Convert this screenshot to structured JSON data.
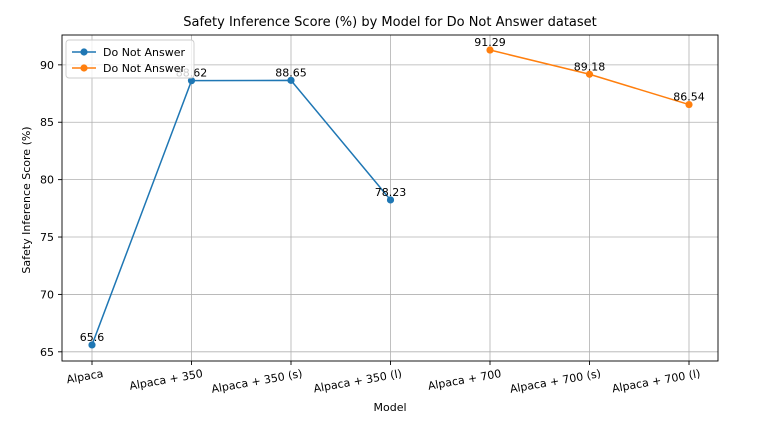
{
  "chart_data": {
    "type": "line",
    "title": "Safety Inference Score (%) by Model for Do Not Answer dataset",
    "xlabel": "Model",
    "ylabel": "Safety Inference Score (%)",
    "categories": [
      "Alpaca",
      "Alpaca + 350",
      "Alpaca + 350 (s)",
      "Alpaca + 350 (l)",
      "Alpaca + 700",
      "Alpaca + 700 (s)",
      "Alpaca + 700 (l)"
    ],
    "ylim": [
      64.2,
      92.6
    ],
    "yticks": [
      65,
      70,
      75,
      80,
      85,
      90
    ],
    "grid": true,
    "legend_position": "top-left",
    "series": [
      {
        "name": "Do Not Answer",
        "color": "#1f77b4",
        "marker": "circle",
        "points": [
          {
            "category": "Alpaca",
            "value": 65.6,
            "label": "65.6"
          },
          {
            "category": "Alpaca + 350",
            "value": 88.62,
            "label": "88.62"
          },
          {
            "category": "Alpaca + 350 (s)",
            "value": 88.65,
            "label": "88.65"
          },
          {
            "category": "Alpaca + 350 (l)",
            "value": 78.23,
            "label": "78.23"
          }
        ]
      },
      {
        "name": "Do Not Answer",
        "color": "#ff7f0e",
        "marker": "circle",
        "points": [
          {
            "category": "Alpaca + 700",
            "value": 91.29,
            "label": "91.29"
          },
          {
            "category": "Alpaca + 700 (s)",
            "value": 89.18,
            "label": "89.18"
          },
          {
            "category": "Alpaca + 700 (l)",
            "value": 86.54,
            "label": "86.54"
          }
        ]
      }
    ]
  }
}
